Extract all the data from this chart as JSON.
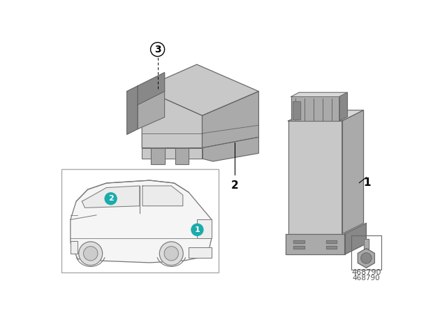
{
  "background_color": "#ffffff",
  "diagram_number": "468790",
  "gray_light": "#C8C8C8",
  "gray_mid": "#AAAAAA",
  "gray_dark": "#888888",
  "gray_edge": "#666666",
  "gray_very_light": "#D8D8D8",
  "teal": "#1AABAB",
  "car_line": "#777777",
  "border_color": "#AAAAAA",
  "label_color": "#000000"
}
